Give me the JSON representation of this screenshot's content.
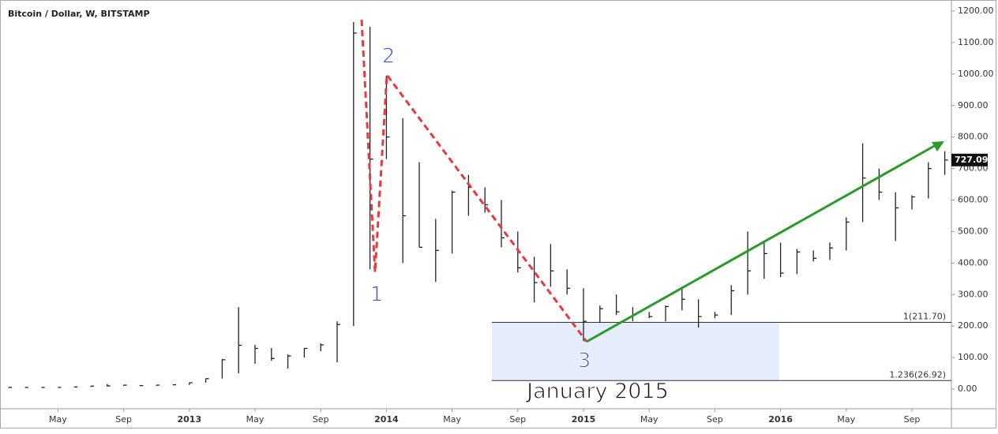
{
  "chart_data": {
    "type": "ohlc",
    "title": "Bitcoin / Dollar, W, BITSTAMP",
    "categories": [
      null,
      null,
      null,
      null,
      null,
      null,
      null,
      null,
      null,
      null,
      null,
      null,
      null,
      null,
      null,
      null,
      null,
      null,
      null,
      null,
      null,
      null,
      null,
      null,
      null,
      null,
      null,
      null,
      null,
      null,
      null,
      null,
      null,
      null,
      null,
      null,
      null,
      null,
      null,
      null,
      null,
      null,
      null,
      null,
      null,
      null,
      null,
      null,
      null,
      null,
      null,
      null,
      null,
      null,
      null,
      null,
      null,
      null
    ],
    "series": [
      {
        "name": "high",
        "values": [
          6.5,
          5.4,
          5.3,
          5.2,
          6.7,
          9.3,
          16,
          12.6,
          12.8,
          12.8,
          13.8,
          20,
          33,
          95,
          260,
          140,
          130,
          110,
          130,
          145,
          215,
          1165,
          1150,
          995,
          860,
          720,
          540,
          630,
          680,
          640,
          600,
          500,
          420,
          460,
          380,
          320,
          265,
          300,
          260,
          245,
          265,
          325,
          285,
          245,
          330,
          500,
          470,
          465,
          445,
          440,
          465,
          545,
          780,
          700,
          625,
          615,
          720,
          755
        ]
      },
      {
        "name": "low",
        "values": [
          4.4,
          4.5,
          4.7,
          4.9,
          5.1,
          6.5,
          7.5,
          10,
          10,
          10,
          12.4,
          13,
          20,
          33,
          50,
          80,
          90,
          65,
          100,
          120,
          85,
          200,
          380,
          730,
          400,
          450,
          340,
          430,
          550,
          560,
          450,
          370,
          275,
          325,
          300,
          152,
          210,
          235,
          215,
          225,
          215,
          250,
          195,
          225,
          235,
          300,
          350,
          355,
          365,
          405,
          410,
          440,
          530,
          600,
          470,
          570,
          605,
          680
        ]
      },
      {
        "name": "close",
        "values": [
          4.9,
          4.9,
          5.0,
          5.1,
          6.6,
          9.3,
          10,
          12.4,
          10.8,
          12.4,
          13.4,
          20,
          33,
          93,
          139,
          129,
          97,
          105,
          129,
          140,
          205,
          1130,
          730,
          800,
          550,
          450,
          440,
          625,
          640,
          585,
          480,
          385,
          338,
          375,
          320,
          215,
          255,
          245,
          235,
          230,
          262,
          285,
          230,
          235,
          312,
          375,
          430,
          368,
          435,
          415,
          448,
          530,
          670,
          625,
          575,
          610,
          700,
          727
        ]
      }
    ],
    "color": "#222222",
    "ylim": [
      0,
      1200
    ],
    "yticks": [
      {
        "value": 0,
        "label": "0.00"
      },
      {
        "value": 100,
        "label": "100.00"
      },
      {
        "value": 200,
        "label": "200.00"
      },
      {
        "value": 300,
        "label": "300.00"
      },
      {
        "value": 400,
        "label": "400.00"
      },
      {
        "value": 500,
        "label": "500.00"
      },
      {
        "value": 600,
        "label": "600.00"
      },
      {
        "value": 700,
        "label": "700.00"
      },
      {
        "value": 800,
        "label": "800.00"
      },
      {
        "value": 900,
        "label": "900.00"
      },
      {
        "value": 1000,
        "label": "1000.00"
      },
      {
        "value": 1100,
        "label": "1100.00"
      },
      {
        "value": 1200,
        "label": "1200.00"
      }
    ],
    "xticks": [
      {
        "value": 3,
        "label": "May"
      },
      {
        "value": 7,
        "label": "Sep"
      },
      {
        "value": 11,
        "label": "2013"
      },
      {
        "value": 15,
        "label": "May"
      },
      {
        "value": 19,
        "label": "Sep"
      },
      {
        "value": 23,
        "label": "2014"
      },
      {
        "value": 27,
        "label": "May"
      },
      {
        "value": 31,
        "label": "Sep"
      },
      {
        "value": 35,
        "label": "2015"
      },
      {
        "value": 39,
        "label": "May"
      },
      {
        "value": 43,
        "label": "Sep"
      },
      {
        "value": 47,
        "label": "2016"
      },
      {
        "value": 51,
        "label": "May"
      },
      {
        "value": 55,
        "label": "Sep"
      }
    ],
    "last_price": 727.09,
    "fib_levels": {
      "values": [
        211.7,
        26.92
      ],
      "value_labels": [
        "1(211.70)",
        "1.236(26.92)"
      ]
    },
    "annotations": [
      "1",
      "2",
      "3",
      "January 2015"
    ]
  }
}
